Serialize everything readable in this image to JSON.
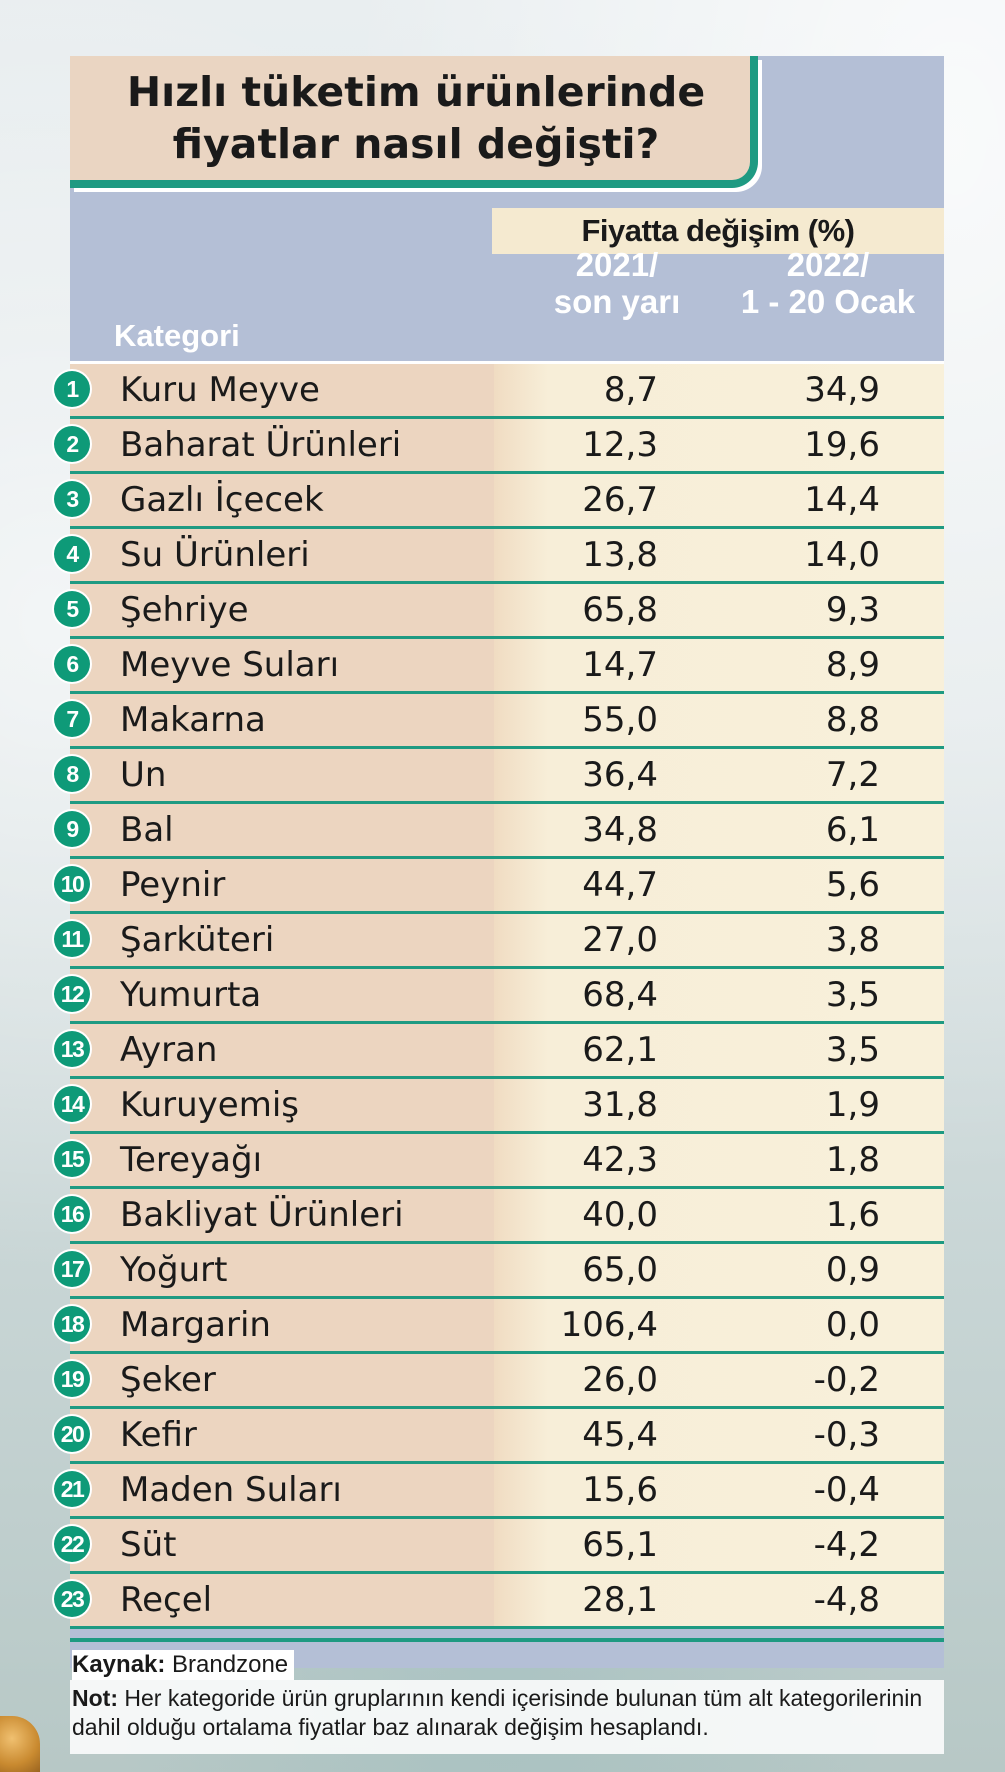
{
  "title": {
    "line1": "Hızlı tüketim ürünlerinde",
    "line2": "fiyatlar nasıl değişti?"
  },
  "header": {
    "group": "Fiyatta değişim (%)",
    "category": "Kategori",
    "col1": {
      "line1": "2021/",
      "line2": "son yarı"
    },
    "col2": {
      "line1": "2022/",
      "line2": "1 - 20 Ocak"
    }
  },
  "rows": [
    {
      "no": "1",
      "category": "Kuru Meyve",
      "v2021": "8,7",
      "v2022": "34,9"
    },
    {
      "no": "2",
      "category": "Baharat Ürünleri",
      "v2021": "12,3",
      "v2022": "19,6"
    },
    {
      "no": "3",
      "category": "Gazlı İçecek",
      "v2021": "26,7",
      "v2022": "14,4"
    },
    {
      "no": "4",
      "category": "Su Ürünleri",
      "v2021": "13,8",
      "v2022": "14,0"
    },
    {
      "no": "5",
      "category": "Şehriye",
      "v2021": "65,8",
      "v2022": "9,3"
    },
    {
      "no": "6",
      "category": "Meyve Suları",
      "v2021": "14,7",
      "v2022": "8,9"
    },
    {
      "no": "7",
      "category": "Makarna",
      "v2021": "55,0",
      "v2022": "8,8"
    },
    {
      "no": "8",
      "category": "Un",
      "v2021": "36,4",
      "v2022": "7,2"
    },
    {
      "no": "9",
      "category": "Bal",
      "v2021": "34,8",
      "v2022": "6,1"
    },
    {
      "no": "10",
      "category": "Peynir",
      "v2021": "44,7",
      "v2022": "5,6"
    },
    {
      "no": "11",
      "category": "Şarküteri",
      "v2021": "27,0",
      "v2022": "3,8"
    },
    {
      "no": "12",
      "category": "Yumurta",
      "v2021": "68,4",
      "v2022": "3,5"
    },
    {
      "no": "13",
      "category": "Ayran",
      "v2021": "62,1",
      "v2022": "3,5"
    },
    {
      "no": "14",
      "category": "Kuruyemiş",
      "v2021": "31,8",
      "v2022": "1,9"
    },
    {
      "no": "15",
      "category": "Tereyağı",
      "v2021": "42,3",
      "v2022": "1,8"
    },
    {
      "no": "16",
      "category": "Bakliyat Ürünleri",
      "v2021": "40,0",
      "v2022": "1,6"
    },
    {
      "no": "17",
      "category": "Yoğurt",
      "v2021": "65,0",
      "v2022": "0,9"
    },
    {
      "no": "18",
      "category": "Margarin",
      "v2021": "106,4",
      "v2022": "0,0"
    },
    {
      "no": "19",
      "category": "Şeker",
      "v2021": "26,0",
      "v2022": "-0,2"
    },
    {
      "no": "20",
      "category": "Kefir",
      "v2021": "45,4",
      "v2022": "-0,3"
    },
    {
      "no": "21",
      "category": "Maden Suları",
      "v2021": "15,6",
      "v2022": "-0,4"
    },
    {
      "no": "22",
      "category": "Süt",
      "v2021": "65,1",
      "v2022": "-4,2"
    },
    {
      "no": "23",
      "category": "Reçel",
      "v2021": "28,1",
      "v2022": "-4,8"
    }
  ],
  "footer": {
    "source_label": "Kaynak:",
    "source_value": "Brandzone",
    "note_label": "Not:",
    "note_value": "Her kategoride ürün gruplarının kendi içerisinde bulunan tüm alt kategorilerinin dahil olduğu ortalama fiyatlar baz alınarak değişim hesaplandı."
  },
  "colors": {
    "accent": "#1e9a82",
    "badge": "#0e9a78",
    "panel": "#b4bfd6",
    "category_cell": "#ecd5c0",
    "value_cell": "#f8f0da"
  }
}
